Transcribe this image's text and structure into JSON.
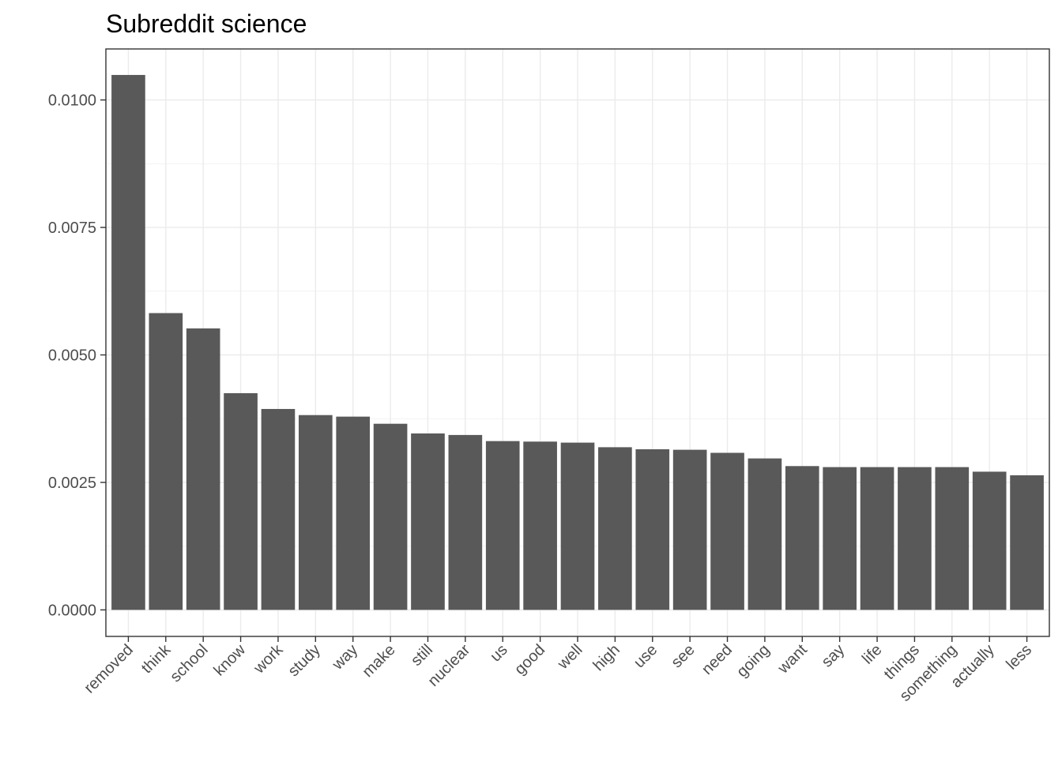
{
  "chart_data": {
    "type": "bar",
    "title": "Subreddit science",
    "xlabel": "",
    "ylabel": "",
    "categories": [
      "removed",
      "think",
      "school",
      "know",
      "work",
      "study",
      "way",
      "make",
      "still",
      "nuclear",
      "us",
      "good",
      "well",
      "high",
      "use",
      "see",
      "need",
      "going",
      "want",
      "say",
      "life",
      "things",
      "something",
      "actually",
      "less"
    ],
    "values": [
      0.01049,
      0.00582,
      0.00552,
      0.00425,
      0.00394,
      0.00382,
      0.00379,
      0.00365,
      0.00346,
      0.00343,
      0.00331,
      0.0033,
      0.00328,
      0.00319,
      0.00315,
      0.00314,
      0.00308,
      0.00297,
      0.00282,
      0.0028,
      0.0028,
      0.0028,
      0.0028,
      0.00271,
      0.00264
    ],
    "ylim": [
      -0.00052,
      0.011
    ],
    "yticks": [
      0.0,
      0.0025,
      0.005,
      0.0075,
      0.01
    ],
    "ytick_labels": [
      "0.0000",
      "0.0025",
      "0.0050",
      "0.0075",
      "0.0100"
    ],
    "grid": true,
    "bar_color": "#595959"
  }
}
